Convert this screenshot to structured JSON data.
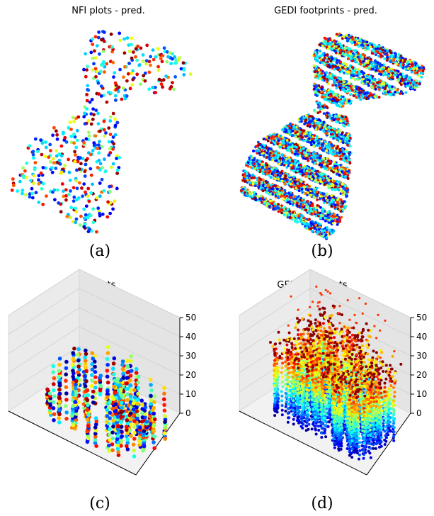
{
  "chart_data": [
    {
      "type": "scatter",
      "title": "NFI plots - pred.",
      "caption": "(a)",
      "axes": "off",
      "colormap": "jet",
      "point_count": 520
    },
    {
      "type": "scatter",
      "title": "GEDI footprints - pred.",
      "caption": "(b)",
      "axes": "off",
      "colormap": "jet",
      "point_count": 5200
    },
    {
      "type": "scatter3d",
      "title": "NFI plots\nheight (m)",
      "caption": "(c)",
      "colormap": "jet",
      "zlim": [
        0,
        50
      ],
      "z_ticks": [
        "0",
        "10",
        "20",
        "30",
        "40",
        "50"
      ]
    },
    {
      "type": "scatter3d",
      "title": "GEDI footprints\nheight (m)",
      "caption": "(d)",
      "colormap": "jet",
      "zlim": [
        0,
        50
      ],
      "z_ticks": [
        "0",
        "10",
        "20",
        "30",
        "40",
        "50"
      ]
    }
  ]
}
